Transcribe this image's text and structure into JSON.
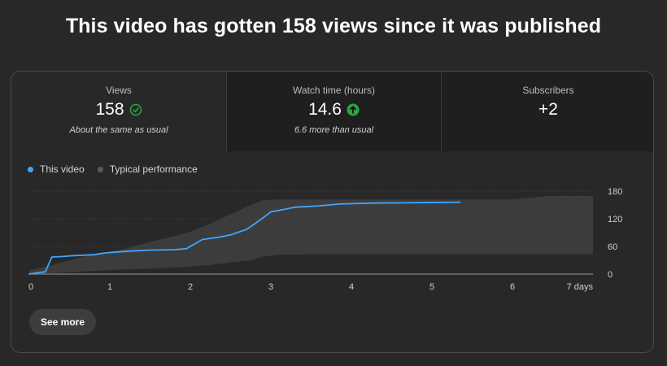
{
  "headline": "This video has gotten 158 views since it was published",
  "tabs": [
    {
      "label": "Views",
      "value": "158",
      "status_icon": "check-circle-icon",
      "status_color": "#3ea6ff",
      "sub": "About the same as usual"
    },
    {
      "label": "Watch time (hours)",
      "value": "14.6",
      "status_icon": "arrow-up-circle-icon",
      "status_color": "#2ba640",
      "sub": "6.6 more than usual"
    },
    {
      "label": "Subscribers",
      "value": "+2",
      "sub": ""
    }
  ],
  "legend": {
    "this_video": {
      "label": "This video",
      "color": "#3ea6ff"
    },
    "typical": {
      "label": "Typical performance",
      "color": "#5a5a5a"
    }
  },
  "see_more_label": "See more",
  "chart_data": {
    "type": "line",
    "x_ticks": [
      "0",
      "1",
      "2",
      "3",
      "4",
      "5",
      "6",
      "7 days"
    ],
    "y_ticks": [
      "0",
      "60",
      "120",
      "180"
    ],
    "xlim": [
      0,
      7
    ],
    "ylim": [
      0,
      180
    ],
    "grid": true,
    "legend_position": "top-left",
    "series": [
      {
        "name": "This video",
        "color": "#3ea6ff",
        "points": [
          [
            0,
            0
          ],
          [
            0.1,
            3
          ],
          [
            0.2,
            5
          ],
          [
            0.28,
            37
          ],
          [
            0.4,
            38
          ],
          [
            0.55,
            40
          ],
          [
            0.8,
            42
          ],
          [
            0.95,
            46
          ],
          [
            1.1,
            48
          ],
          [
            1.25,
            50
          ],
          [
            1.5,
            52
          ],
          [
            1.8,
            53
          ],
          [
            1.95,
            55
          ],
          [
            2.05,
            65
          ],
          [
            2.15,
            75
          ],
          [
            2.35,
            80
          ],
          [
            2.5,
            85
          ],
          [
            2.7,
            97
          ],
          [
            2.85,
            115
          ],
          [
            3.0,
            135
          ],
          [
            3.15,
            140
          ],
          [
            3.3,
            145
          ],
          [
            3.6,
            148
          ],
          [
            3.85,
            152
          ],
          [
            4.25,
            154
          ],
          [
            4.8,
            155
          ],
          [
            5.35,
            156
          ]
        ]
      },
      {
        "name": "Typical performance",
        "color": "#5a5a5a",
        "band_x": [
          0,
          0.3,
          0.6,
          0.9,
          1.2,
          1.5,
          1.75,
          2.0,
          2.25,
          2.5,
          2.75,
          2.9,
          3.1,
          3.5,
          4.0,
          5.0,
          6.0,
          6.5,
          7.0
        ],
        "band_low": [
          0,
          2,
          5,
          8,
          10,
          12,
          14,
          16,
          20,
          25,
          30,
          38,
          42,
          43,
          43,
          43,
          43,
          43,
          43
        ],
        "band_high": [
          8,
          20,
          35,
          45,
          55,
          70,
          80,
          92,
          110,
          130,
          150,
          160,
          162,
          162,
          162,
          162,
          162,
          170,
          170
        ]
      }
    ]
  }
}
